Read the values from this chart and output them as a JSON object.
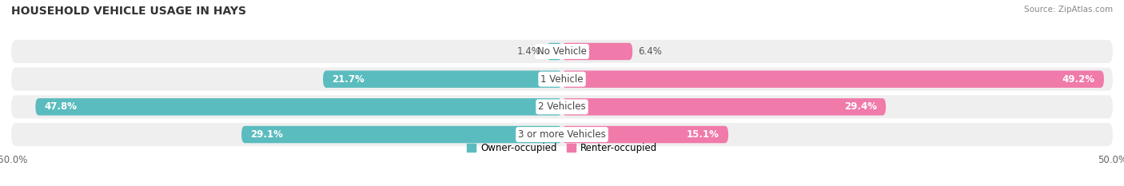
{
  "title": "HOUSEHOLD VEHICLE USAGE IN HAYS",
  "source": "Source: ZipAtlas.com",
  "categories": [
    "No Vehicle",
    "1 Vehicle",
    "2 Vehicles",
    "3 or more Vehicles"
  ],
  "owner_values": [
    1.4,
    21.7,
    47.8,
    29.1
  ],
  "renter_values": [
    6.4,
    49.2,
    29.4,
    15.1
  ],
  "owner_color": "#5bbcbf",
  "renter_color": "#f07aaa",
  "owner_label": "Owner-occupied",
  "renter_label": "Renter-occupied",
  "xlim": [
    -50,
    50
  ],
  "bar_height": 0.62,
  "background_color": "#ffffff",
  "bar_bg_color": "#efefef",
  "title_fontsize": 10,
  "label_fontsize": 8.5,
  "value_fontsize": 8.5,
  "category_fontsize": 8.5,
  "axis_tick_fontsize": 8.5
}
